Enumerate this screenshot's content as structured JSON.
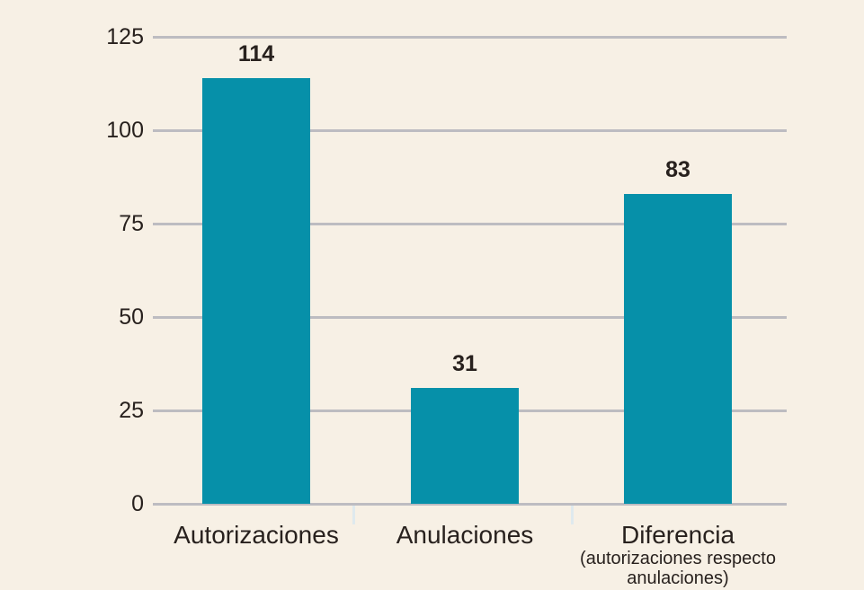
{
  "chart_data": {
    "type": "bar",
    "title": "",
    "xlabel": "",
    "ylabel": "",
    "categories": [
      "Autorizaciones",
      "Anulaciones",
      "Diferencia"
    ],
    "category_sublabels": [
      [],
      [],
      [
        "(autorizaciones respecto",
        "anulaciones)"
      ]
    ],
    "values": [
      114,
      31,
      83
    ],
    "value_labels": [
      "114",
      "31",
      "83"
    ],
    "yticks": [
      "0",
      "25",
      "50",
      "75",
      "100",
      "125"
    ],
    "ytick_values": [
      0,
      25,
      50,
      75,
      100,
      125
    ],
    "ylim": [
      0,
      125
    ],
    "grid": "horizontal",
    "legend": "none",
    "colors": {
      "background": "#f7f0e5",
      "bar": "#0690a9",
      "gridline": "#bdbcc1",
      "category_tick": "#dfe9ee",
      "text": "#28211e"
    }
  }
}
